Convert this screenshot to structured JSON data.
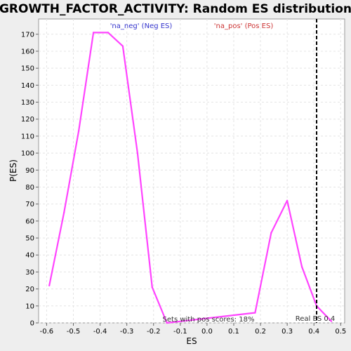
{
  "chart_data": {
    "type": "line",
    "title": "GROWTH_FACTOR_ACTIVITY: Random ES distribution",
    "xlabel": "ES",
    "ylabel": "P(ES)",
    "xlim": [
      -0.63,
      0.515
    ],
    "ylim": [
      0,
      179
    ],
    "x_ticks": [
      -0.6,
      -0.5,
      -0.4,
      -0.3,
      -0.2,
      -0.1,
      0.0,
      0.1,
      0.2,
      0.3,
      0.4,
      0.5
    ],
    "y_ticks": [
      0,
      10,
      20,
      30,
      40,
      50,
      60,
      70,
      80,
      90,
      100,
      110,
      120,
      130,
      140,
      150,
      160,
      170
    ],
    "grid": true,
    "series": [
      {
        "name": "",
        "color": "#ff44ff",
        "x": [
          -0.59,
          -0.535,
          -0.48,
          -0.425,
          -0.37,
          -0.315,
          -0.26,
          -0.205,
          -0.15,
          0.18,
          0.24,
          0.3,
          0.355,
          0.41,
          0.465
        ],
        "y": [
          22,
          65,
          113,
          171,
          171,
          163,
          100,
          21,
          0,
          6,
          53,
          72,
          33,
          10,
          1
        ]
      }
    ],
    "legend": [
      {
        "label": "'na_neg' (Neg ES)",
        "color": "#3333cc"
      },
      {
        "label": "'na_pos' (Pos ES)",
        "color": "#cc3333"
      }
    ],
    "real_es": {
      "value": 0.41,
      "label": "Real ES 0.4"
    },
    "annotation": "Sets with pos scores: 18%"
  }
}
